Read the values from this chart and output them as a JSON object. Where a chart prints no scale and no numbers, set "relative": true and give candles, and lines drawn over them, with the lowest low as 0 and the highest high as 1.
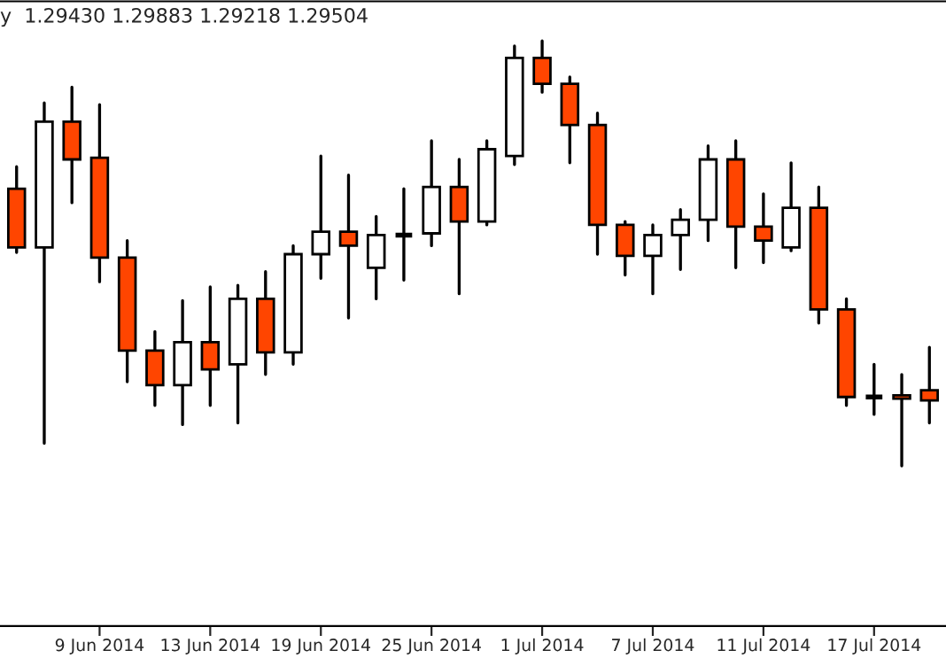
{
  "chart_data": {
    "type": "candlestick",
    "relative": true,
    "tick_labels": "x",
    "annotations": [
      "y  1.29430 1.29883 1.29218 1.29504"
    ],
    "categories": [
      null,
      null,
      null,
      "9 Jun 2014",
      null,
      null,
      null,
      "13 Jun 2014",
      null,
      null,
      null,
      "19 Jun 2014",
      null,
      null,
      null,
      "25 Jun 2014",
      null,
      null,
      null,
      "1 Jul 2014",
      null,
      null,
      null,
      "7 Jul 2014",
      null,
      null,
      null,
      "11 Jul 2014",
      null,
      null,
      null,
      "17 Jul 2014",
      null,
      null
    ],
    "ohlc": [
      [
        0.652,
        0.704,
        0.502,
        0.514
      ],
      [
        0.514,
        0.854,
        0.053,
        0.81
      ],
      [
        0.81,
        0.891,
        0.619,
        0.721
      ],
      [
        0.725,
        0.85,
        0.433,
        0.49
      ],
      [
        0.49,
        0.53,
        0.198,
        0.271
      ],
      [
        0.271,
        0.316,
        0.142,
        0.19
      ],
      [
        0.19,
        0.389,
        0.097,
        0.291
      ],
      [
        0.291,
        0.421,
        0.142,
        0.227
      ],
      [
        0.239,
        0.425,
        0.101,
        0.393
      ],
      [
        0.393,
        0.457,
        0.215,
        0.267
      ],
      [
        0.267,
        0.518,
        0.239,
        0.498
      ],
      [
        0.498,
        0.729,
        0.441,
        0.551
      ],
      [
        0.551,
        0.684,
        0.348,
        0.518
      ],
      [
        0.466,
        0.587,
        0.393,
        0.543
      ],
      [
        0.543,
        0.652,
        0.437,
        0.543
      ],
      [
        0.547,
        0.765,
        0.518,
        0.656
      ],
      [
        0.656,
        0.721,
        0.405,
        0.575
      ],
      [
        0.575,
        0.765,
        0.567,
        0.745
      ],
      [
        0.729,
        0.988,
        0.709,
        0.96
      ],
      [
        0.96,
        1.0,
        0.879,
        0.899
      ],
      [
        0.899,
        0.915,
        0.713,
        0.802
      ],
      [
        0.802,
        0.83,
        0.498,
        0.567
      ],
      [
        0.567,
        0.575,
        0.449,
        0.494
      ],
      [
        0.494,
        0.567,
        0.405,
        0.543
      ],
      [
        0.543,
        0.603,
        0.462,
        0.579
      ],
      [
        0.579,
        0.753,
        0.53,
        0.721
      ],
      [
        0.721,
        0.765,
        0.466,
        0.563
      ],
      [
        0.563,
        0.64,
        0.478,
        0.53
      ],
      [
        0.514,
        0.713,
        0.506,
        0.607
      ],
      [
        0.607,
        0.656,
        0.336,
        0.368
      ],
      [
        0.368,
        0.393,
        0.142,
        0.162
      ],
      [
        0.162,
        0.239,
        0.121,
        0.162
      ],
      [
        0.166,
        0.215,
        0.0,
        0.158
      ],
      [
        0.178,
        0.279,
        0.101,
        0.154
      ]
    ],
    "colors": [
      "#ff4500",
      "#ffffff",
      "#ff4500",
      "#ff4500",
      "#ff4500",
      "#ff4500",
      "#ffffff",
      "#ff4500",
      "#ffffff",
      "#ff4500",
      "#ffffff",
      "#ffffff",
      "#ff4500",
      "#ffffff",
      "#000000",
      "#ffffff",
      "#ff4500",
      "#ffffff",
      "#ffffff",
      "#ff4500",
      "#ff4500",
      "#ff4500",
      "#ff4500",
      "#ffffff",
      "#ffffff",
      "#ffffff",
      "#ff4500",
      "#ff4500",
      "#ffffff",
      "#ff4500",
      "#ff4500",
      "#000000",
      "#ff4500",
      "#ff4500"
    ]
  }
}
